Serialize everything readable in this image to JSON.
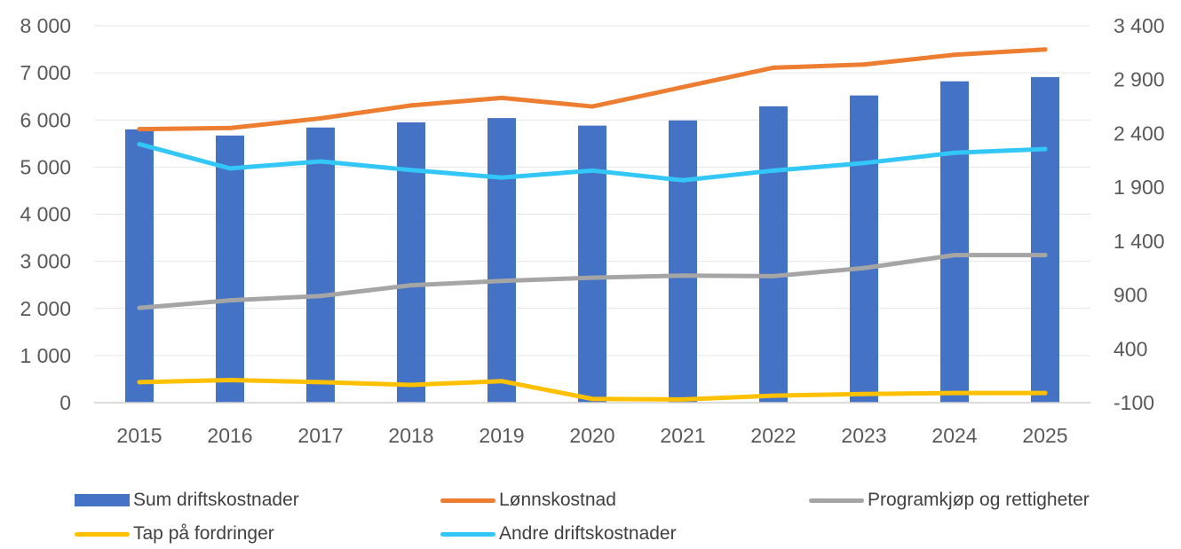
{
  "chart_data": {
    "type": "bar",
    "title": "",
    "xlabel": "",
    "ylabel": "",
    "categories": [
      "2015",
      "2016",
      "2017",
      "2018",
      "2019",
      "2020",
      "2021",
      "2022",
      "2023",
      "2024",
      "2025"
    ],
    "y_left": {
      "range": [
        0,
        8000
      ],
      "ticks": [
        0,
        1000,
        2000,
        3000,
        4000,
        5000,
        6000,
        7000,
        8000
      ],
      "tick_labels": [
        "0",
        "1 000",
        "2 000",
        "3 000",
        "4 000",
        "5 000",
        "6 000",
        "7 000",
        "8 000"
      ]
    },
    "y_right": {
      "range": [
        -100,
        3400
      ],
      "ticks": [
        -100,
        400,
        900,
        1400,
        1900,
        2400,
        2900,
        3400
      ],
      "tick_labels": [
        "-100",
        "400",
        "900",
        "1 400",
        "1 900",
        "2 400",
        "2 900",
        "3 400"
      ]
    },
    "grid": true,
    "legend_position": "bottom",
    "series": [
      {
        "name": "Sum driftskostnader",
        "kind": "bar",
        "axis": "left",
        "color": "#4472C4",
        "values": [
          5800,
          5670,
          5840,
          5950,
          6040,
          5880,
          5990,
          6290,
          6520,
          6820,
          6910
        ]
      },
      {
        "name": "Lønnskostnad",
        "kind": "line",
        "axis": "right",
        "color": "#ED7D31",
        "values": [
          2440,
          2450,
          2540,
          2660,
          2730,
          2650,
          2830,
          3010,
          3040,
          3130,
          3180
        ]
      },
      {
        "name": "Programkjøp og rettigheter",
        "kind": "line",
        "axis": "right",
        "color": "#A5A5A5",
        "values": [
          780,
          850,
          890,
          990,
          1030,
          1060,
          1080,
          1075,
          1150,
          1270,
          1270
        ]
      },
      {
        "name": "Tap på fordringer",
        "kind": "line",
        "axis": "right",
        "color": "#FFC000",
        "values": [
          90,
          110,
          90,
          65,
          100,
          -65,
          -70,
          -35,
          -20,
          -10,
          -10
        ]
      },
      {
        "name": "Andre driftskostnader",
        "kind": "line",
        "axis": "right",
        "color": "#33C7F7",
        "values": [
          2300,
          2075,
          2140,
          2060,
          1990,
          2055,
          1965,
          2055,
          2125,
          2220,
          2255
        ]
      }
    ]
  },
  "legend": {
    "items": [
      {
        "label": "Sum driftskostnader",
        "color": "#4472C4",
        "kind": "bar"
      },
      {
        "label": "Lønnskostnad",
        "color": "#ED7D31",
        "kind": "line"
      },
      {
        "label": "Programkjøp og rettigheter",
        "color": "#A5A5A5",
        "kind": "line"
      },
      {
        "label": "Tap på fordringer",
        "color": "#FFC000",
        "kind": "line"
      },
      {
        "label": "Andre driftskostnader",
        "color": "#33C7F7",
        "kind": "line"
      }
    ]
  }
}
